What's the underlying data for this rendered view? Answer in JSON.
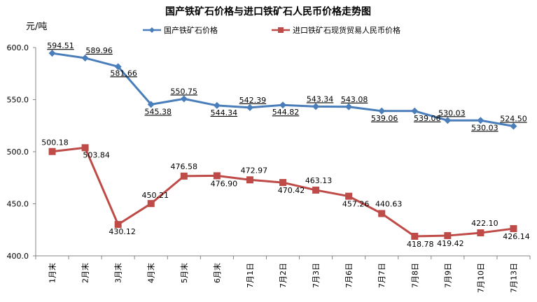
{
  "chart_data": {
    "type": "line",
    "title": "国产铁矿石价格与进口铁矿石人民币价格走势图",
    "unit_label": "元/吨",
    "ylim": [
      400,
      600
    ],
    "yticks": [
      "600.0",
      "550.0",
      "500.0",
      "450.0",
      "400.0"
    ],
    "ytick_values": [
      600,
      550,
      500,
      450,
      400
    ],
    "grid": false,
    "legend_position": "top",
    "categories": [
      "1月末",
      "2月末",
      "3月末",
      "4月末",
      "5月末",
      "6月末",
      "7月1日",
      "7月2日",
      "7月3日",
      "7月6日",
      "7月7日",
      "7月8日",
      "7月9日",
      "7月10日",
      "7月13日"
    ],
    "series": [
      {
        "name": "国产铁矿石价格",
        "color": "#4a7ebb",
        "marker": "diamond",
        "values": [
          594.51,
          589.96,
          581.66,
          545.38,
          550.75,
          544.34,
          542.39,
          544.82,
          543.34,
          543.08,
          539.06,
          539.06,
          530.03,
          530.03,
          524.5
        ],
        "labels": [
          "594.51",
          "589.96",
          "581.66",
          "545.38",
          "550.75",
          "544.34",
          "542.39",
          "544.82",
          "543.34",
          "543.08",
          "539.06",
          "539.06",
          "530.03",
          "530.03",
          "524.50"
        ]
      },
      {
        "name": "进口铁矿石现货贸易人民币价格",
        "color": "#be4b48",
        "marker": "square",
        "values": [
          500.18,
          503.84,
          430.12,
          450.21,
          476.58,
          476.9,
          472.97,
          470.42,
          463.13,
          457.26,
          440.63,
          418.78,
          419.42,
          422.1,
          426.14
        ],
        "labels": [
          "500.18",
          "503.84",
          "430.12",
          "450.21",
          "476.58",
          "476.90",
          "472.97",
          "470.42",
          "463.13",
          "457.26",
          "440.63",
          "418.78",
          "419.42",
          "422.10",
          "426.14"
        ]
      }
    ]
  }
}
